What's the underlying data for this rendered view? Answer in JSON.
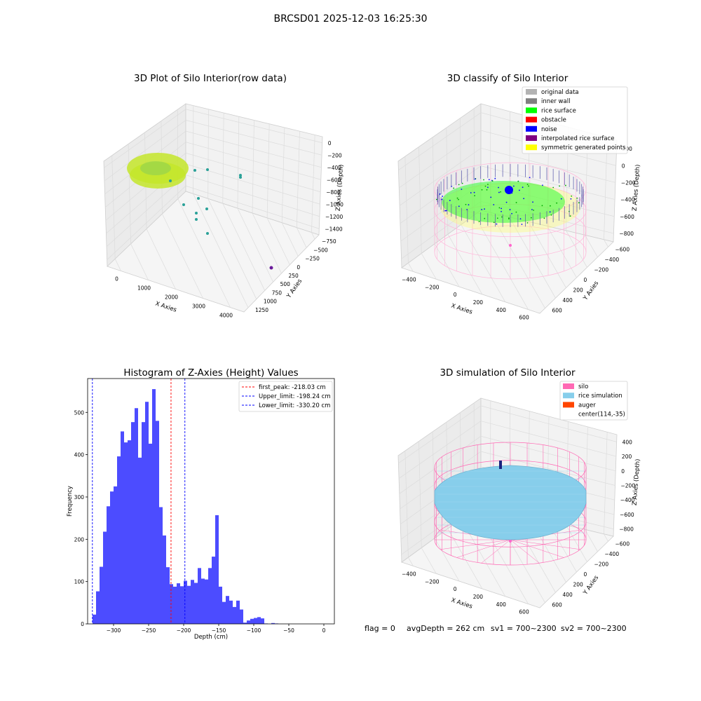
{
  "suptitle": "BRCSD01 2025-12-03 16:25:30",
  "footer": {
    "flag": "flag = 0",
    "avg_depth": "avgDepth = 262 cm",
    "sv1": "sv1 = 700~2300",
    "sv2": "sv2 = 700~2300"
  },
  "colors": {
    "histogram_bars": "#4c4cff",
    "first_peak_line": "#ff0000",
    "limit_lines": "#0000ff",
    "silo": "#ff69b4",
    "rice_simulation": "#87ceeb",
    "auger": "#ff4500",
    "original_data": "#b3b3b3",
    "inner_wall": "#808080",
    "rice_surface": "#00ff00",
    "obstacle": "#ff0000",
    "noise": "#0000ff",
    "interpolated_rice_surface": "#800080",
    "symmetric_generated_points": "#ffff00",
    "raw_points_light": "#c4e62a",
    "raw_points_teal": "#2aa198"
  },
  "chart_data": [
    {
      "id": "raw",
      "type": "scatter",
      "projection": "3d",
      "title": "3D Plot of Silo Interior(row data)",
      "xlabel": "X Axies",
      "ylabel": "Y Axies",
      "zlabel": "Z Axies (Depth)",
      "xticks": [
        "0",
        "1000",
        "2000",
        "3000",
        "4000"
      ],
      "yticks": [
        "−750",
        "−500",
        "−250",
        "0",
        "250",
        "500",
        "750",
        "1000",
        "1250"
      ],
      "zticks": [
        "0",
        "−200",
        "−400",
        "−600",
        "−800",
        "−1000",
        "−1200",
        "−1400"
      ],
      "grid": true
    },
    {
      "id": "classify",
      "type": "scatter",
      "projection": "3d",
      "title": "3D classify of Silo Interior",
      "xlabel": "X Axies",
      "ylabel": "Y Axies",
      "zlabel": "Z Axies (Depth)",
      "xticks": [
        "−400",
        "−200",
        "0",
        "200",
        "400",
        "600"
      ],
      "yticks": [
        "−600",
        "−400",
        "−200",
        "0",
        "200",
        "400",
        "600"
      ],
      "zticks": [
        "200",
        "0",
        "−200",
        "−400",
        "−600",
        "−800"
      ],
      "legend_placement": "top-right",
      "legend": [
        {
          "label": "original data",
          "color": "#b3b3b3"
        },
        {
          "label": "inner wall",
          "color": "#808080"
        },
        {
          "label": "rice surface",
          "color": "#00ff00"
        },
        {
          "label": "obstacle",
          "color": "#ff0000"
        },
        {
          "label": "noise",
          "color": "#0000ff"
        },
        {
          "label": "interpolated rice surface",
          "color": "#800080"
        },
        {
          "label": "symmetric generated points",
          "color": "#ffff00"
        }
      ],
      "grid": true
    },
    {
      "id": "hist",
      "type": "bar",
      "title": "Histogram of Z-Axies (Height) Values",
      "xlabel": "Depth (cm)",
      "ylabel": "Frequency",
      "xlim": [
        -337,
        15
      ],
      "ylim": [
        0,
        580
      ],
      "xticks": [
        -300,
        -250,
        -200,
        -150,
        -100,
        -50,
        0
      ],
      "xtick_labels": [
        "−300",
        "−250",
        "−200",
        "−150",
        "−100",
        "−50",
        "0"
      ],
      "yticks": [
        0,
        100,
        200,
        300,
        400,
        500
      ],
      "yticks_labels": [
        "0",
        "100",
        "200",
        "300",
        "400",
        "500"
      ],
      "bin_width": 5,
      "bins_start": -330,
      "values": [
        22,
        77,
        135,
        218,
        278,
        313,
        325,
        396,
        455,
        429,
        434,
        477,
        510,
        393,
        477,
        525,
        426,
        555,
        480,
        276,
        209,
        134,
        94,
        88,
        96,
        89,
        102,
        90,
        104,
        97,
        132,
        107,
        105,
        132,
        159,
        257,
        88,
        52,
        66,
        55,
        40,
        55,
        34,
        3,
        8,
        12,
        14,
        16,
        13,
        1,
        0,
        2,
        1
      ],
      "vlines": [
        {
          "x": -218.03,
          "label": "first_peak: -218.03 cm",
          "color": "#ff0000"
        },
        {
          "x": -198.24,
          "label": "Upper_limit: -198.24 cm",
          "color": "#0000ff"
        },
        {
          "x": -330.2,
          "label": "Lower_limit: -330.20 cm",
          "color": "#0000ff"
        }
      ],
      "legend_placement": "top-right"
    },
    {
      "id": "sim",
      "type": "scatter",
      "projection": "3d",
      "title": "3D simulation of Silo Interior",
      "xlabel": "X Axies",
      "ylabel": "Y Axies",
      "zlabel": "Z Axies (Depth)",
      "xticks": [
        "−400",
        "−200",
        "0",
        "200",
        "400",
        "600"
      ],
      "yticks": [
        "−600",
        "−400",
        "−200",
        "0",
        "200",
        "400",
        "600"
      ],
      "zticks": [
        "400",
        "200",
        "0",
        "−200",
        "−400",
        "−600",
        "−800"
      ],
      "legend_placement": "top-right",
      "legend": [
        {
          "label": "silo",
          "color": "#ff69b4"
        },
        {
          "label": "rice simulation",
          "color": "#87ceeb"
        },
        {
          "label": "auger",
          "color": "#ff4500"
        },
        {
          "label": "center(114,-35)",
          "color": ""
        }
      ],
      "grid": true
    }
  ]
}
